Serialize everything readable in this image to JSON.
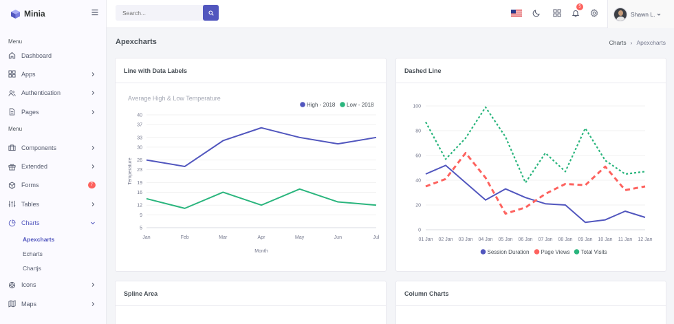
{
  "brand": {
    "name": "Minia"
  },
  "sidebar": {
    "menu_title_1": "Menu",
    "menu_title_2": "Menu",
    "items": [
      {
        "label": "Dashboard",
        "icon": "home-icon"
      },
      {
        "label": "Apps",
        "icon": "grid-icon"
      },
      {
        "label": "Authentication",
        "icon": "users-icon"
      },
      {
        "label": "Pages",
        "icon": "file-icon"
      },
      {
        "label": "Components",
        "icon": "briefcase-icon"
      },
      {
        "label": "Extended",
        "icon": "gift-icon"
      },
      {
        "label": "Forms",
        "icon": "box-icon",
        "badge": "7"
      },
      {
        "label": "Tables",
        "icon": "sliders-icon"
      },
      {
        "label": "Charts",
        "icon": "pie-chart-icon"
      },
      {
        "label": "Icons",
        "icon": "award-icon"
      },
      {
        "label": "Maps",
        "icon": "map-icon"
      }
    ],
    "chart_sub": [
      "Apexcharts",
      "Echarts",
      "Chartjs"
    ]
  },
  "topbar": {
    "search_placeholder": "Search...",
    "notification_count": "5",
    "user_name": "Shawn L."
  },
  "page": {
    "title": "Apexcharts",
    "breadcrumb_parent": "Charts",
    "breadcrumb_sep": "›",
    "breadcrumb_current": "Apexcharts"
  },
  "cards": {
    "line_labels": "Line with Data Labels",
    "dashed": "Dashed Line",
    "spline": "Spline Area",
    "column": "Column Charts"
  },
  "chart_data": [
    {
      "type": "line",
      "title": "Average High & Low Temperature",
      "xlabel": "Month",
      "ylabel": "Temperature",
      "categories": [
        "Jan",
        "Feb",
        "Mar",
        "Apr",
        "May",
        "Jun",
        "Jul"
      ],
      "ylim": [
        5,
        40
      ],
      "yticks": [
        5,
        9,
        12,
        16,
        19,
        23,
        26,
        30,
        33,
        37,
        40
      ],
      "legend_position": "top-right",
      "series": [
        {
          "name": "High - 2018",
          "color": "#5156be",
          "values": [
            26,
            24,
            32,
            36,
            33,
            31,
            33
          ]
        },
        {
          "name": "Low - 2018",
          "color": "#2ab57d",
          "values": [
            14,
            11,
            16,
            12,
            17,
            13,
            12
          ]
        }
      ]
    },
    {
      "type": "line",
      "categories": [
        "01 Jan",
        "02 Jan",
        "03 Jan",
        "04 Jan",
        "05 Jan",
        "06 Jan",
        "07 Jan",
        "08 Jan",
        "09 Jan",
        "10 Jan",
        "11 Jan",
        "12 Jan"
      ],
      "ylim": [
        0,
        100
      ],
      "yticks": [
        0,
        20,
        40,
        60,
        80,
        100
      ],
      "legend_position": "bottom",
      "series": [
        {
          "name": "Session Duration",
          "color": "#5156be",
          "dash": "none",
          "values": [
            45,
            52,
            38,
            24,
            33,
            26,
            21,
            20,
            6,
            8,
            15,
            10
          ]
        },
        {
          "name": "Page Views",
          "color": "#fd625e",
          "dash": "dashed",
          "values": [
            35,
            41,
            62,
            42,
            13,
            18,
            29,
            37,
            36,
            51,
            32,
            35
          ]
        },
        {
          "name": "Total Visits",
          "color": "#2ab57d",
          "dash": "dotted",
          "values": [
            87,
            57,
            74,
            99,
            75,
            38,
            62,
            47,
            82,
            56,
            45,
            47
          ]
        }
      ]
    }
  ]
}
